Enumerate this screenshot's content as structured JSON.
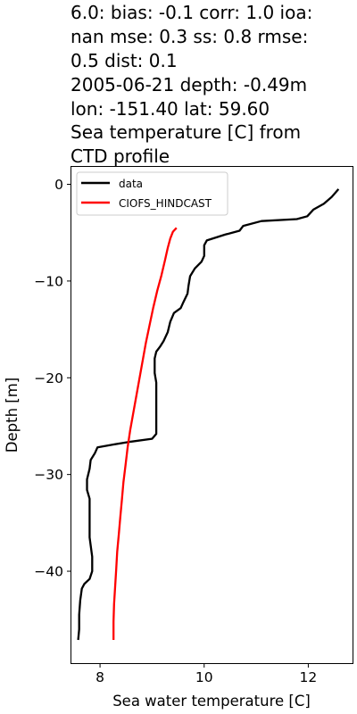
{
  "title_lines": [
    "6.0: bias: -0.1  corr: 1.0  ioa:",
    "nan  mse: 0.3  ss: 0.8  rmse:",
    "0.5  dist: 0.1",
    "2005-06-21 depth: -0.49m",
    "lon: -151.40 lat: 59.60",
    "Sea temperature [C] from",
    "CTD profile"
  ],
  "chart_data": {
    "type": "line",
    "xlabel": "Sea water temperature [C]",
    "ylabel": "Depth [m]",
    "xlim": [
      7.45,
      12.85
    ],
    "ylim": [
      -49.5,
      1.8
    ],
    "x_ticks": [
      8,
      10,
      12
    ],
    "y_ticks": [
      0,
      -10,
      -20,
      -30,
      -40
    ],
    "x_tick_labels": [
      "8",
      "10",
      "12"
    ],
    "y_tick_labels": [
      "0",
      "−10",
      "−20",
      "−30",
      "−40"
    ],
    "legend_position": "top-left",
    "series": [
      {
        "name": "data",
        "color": "#000000",
        "points": [
          [
            12.58,
            -0.5
          ],
          [
            12.45,
            -1.3
          ],
          [
            12.3,
            -2.0
          ],
          [
            12.1,
            -2.6
          ],
          [
            11.98,
            -3.3
          ],
          [
            11.78,
            -3.6
          ],
          [
            11.1,
            -3.8
          ],
          [
            10.75,
            -4.3
          ],
          [
            10.68,
            -4.8
          ],
          [
            10.4,
            -5.2
          ],
          [
            10.05,
            -5.8
          ],
          [
            10.0,
            -6.3
          ],
          [
            10.0,
            -7.4
          ],
          [
            9.95,
            -8.0
          ],
          [
            9.82,
            -8.7
          ],
          [
            9.73,
            -9.5
          ],
          [
            9.7,
            -10.5
          ],
          [
            9.68,
            -11.3
          ],
          [
            9.6,
            -12.2
          ],
          [
            9.55,
            -12.8
          ],
          [
            9.42,
            -13.3
          ],
          [
            9.35,
            -14.2
          ],
          [
            9.3,
            -15.3
          ],
          [
            9.22,
            -16.2
          ],
          [
            9.15,
            -16.8
          ],
          [
            9.08,
            -17.3
          ],
          [
            9.05,
            -18.0
          ],
          [
            9.05,
            -19.5
          ],
          [
            9.08,
            -20.5
          ],
          [
            9.08,
            -22.5
          ],
          [
            9.08,
            -24.0
          ],
          [
            9.08,
            -25.8
          ],
          [
            9.0,
            -26.3
          ],
          [
            8.6,
            -26.6
          ],
          [
            8.25,
            -26.9
          ],
          [
            7.95,
            -27.2
          ],
          [
            7.9,
            -27.8
          ],
          [
            7.82,
            -28.5
          ],
          [
            7.8,
            -29.4
          ],
          [
            7.75,
            -30.5
          ],
          [
            7.75,
            -31.6
          ],
          [
            7.8,
            -32.5
          ],
          [
            7.8,
            -34.5
          ],
          [
            7.8,
            -36.5
          ],
          [
            7.85,
            -38.5
          ],
          [
            7.85,
            -40.0
          ],
          [
            7.8,
            -40.8
          ],
          [
            7.7,
            -41.3
          ],
          [
            7.65,
            -41.8
          ],
          [
            7.62,
            -43.0
          ],
          [
            7.6,
            -44.5
          ],
          [
            7.6,
            -46.0
          ],
          [
            7.58,
            -47.1
          ]
        ]
      },
      {
        "name": "CIOFS_HINDCAST",
        "color": "#ff0000",
        "points": [
          [
            9.47,
            -4.5
          ],
          [
            9.4,
            -4.9
          ],
          [
            9.35,
            -5.6
          ],
          [
            9.3,
            -6.6
          ],
          [
            9.25,
            -7.8
          ],
          [
            9.18,
            -9.4
          ],
          [
            9.1,
            -11.0
          ],
          [
            9.02,
            -12.8
          ],
          [
            8.95,
            -14.6
          ],
          [
            8.88,
            -16.4
          ],
          [
            8.82,
            -18.2
          ],
          [
            8.76,
            -20.0
          ],
          [
            8.7,
            -21.8
          ],
          [
            8.64,
            -23.6
          ],
          [
            8.58,
            -25.4
          ],
          [
            8.53,
            -27.2
          ],
          [
            8.49,
            -29.0
          ],
          [
            8.45,
            -30.8
          ],
          [
            8.42,
            -32.6
          ],
          [
            8.39,
            -34.4
          ],
          [
            8.36,
            -36.2
          ],
          [
            8.33,
            -38.0
          ],
          [
            8.31,
            -39.8
          ],
          [
            8.29,
            -41.6
          ],
          [
            8.27,
            -43.4
          ],
          [
            8.26,
            -45.2
          ],
          [
            8.26,
            -47.1
          ]
        ]
      }
    ]
  }
}
